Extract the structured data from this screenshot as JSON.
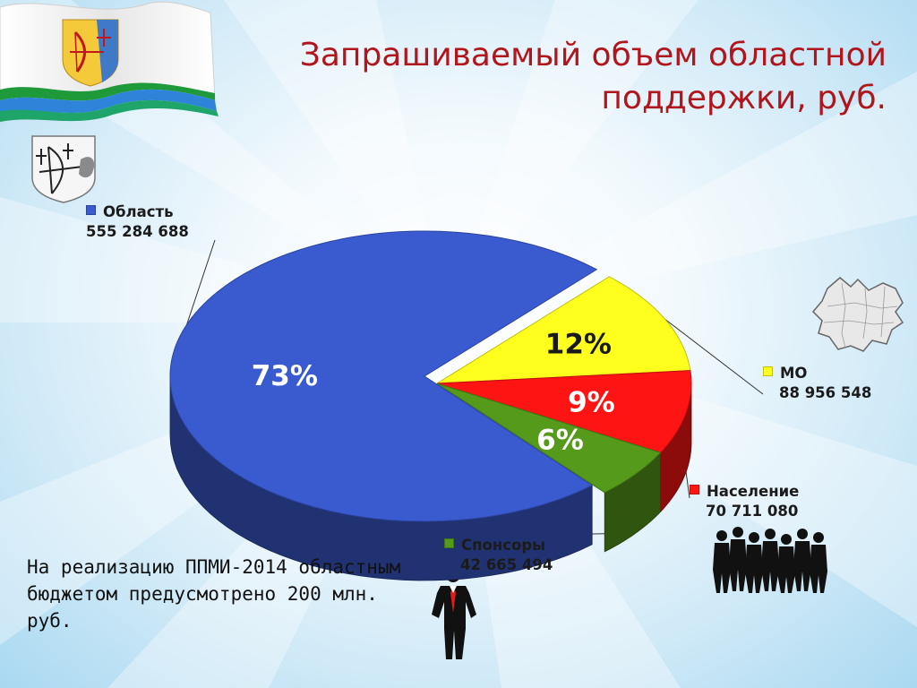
{
  "title": "Запрашиваемый объем областной поддержки, руб.",
  "note": "На реализацию ППМИ-2014 областным бюджетом предусмотрено 200 млн. руб.",
  "chart_data": {
    "type": "pie",
    "slices": [
      {
        "name": "Область",
        "value": 555284688,
        "value_label": "555 284 688",
        "percent_label": "73%",
        "color": "#3a5bd0"
      },
      {
        "name": "МО",
        "value": 88956548,
        "value_label": "88 956 548",
        "percent_label": "12%",
        "color": "#ffff1e"
      },
      {
        "name": "Население",
        "value": 70711080,
        "value_label": "70 711 080",
        "percent_label": "9%",
        "color": "#ff1414"
      },
      {
        "name": "Спонсоры",
        "value": 42665494,
        "value_label": "42 665 494",
        "percent_label": "6%",
        "color": "#559a1a"
      }
    ]
  },
  "icons": {
    "flag": "kirov-region-flag",
    "coat_of_arms": "kirov-coat-of-arms-icon",
    "map": "kirov-region-map-icon",
    "people": "crowd-silhouette-icon",
    "person": "businessman-silhouette-icon"
  }
}
